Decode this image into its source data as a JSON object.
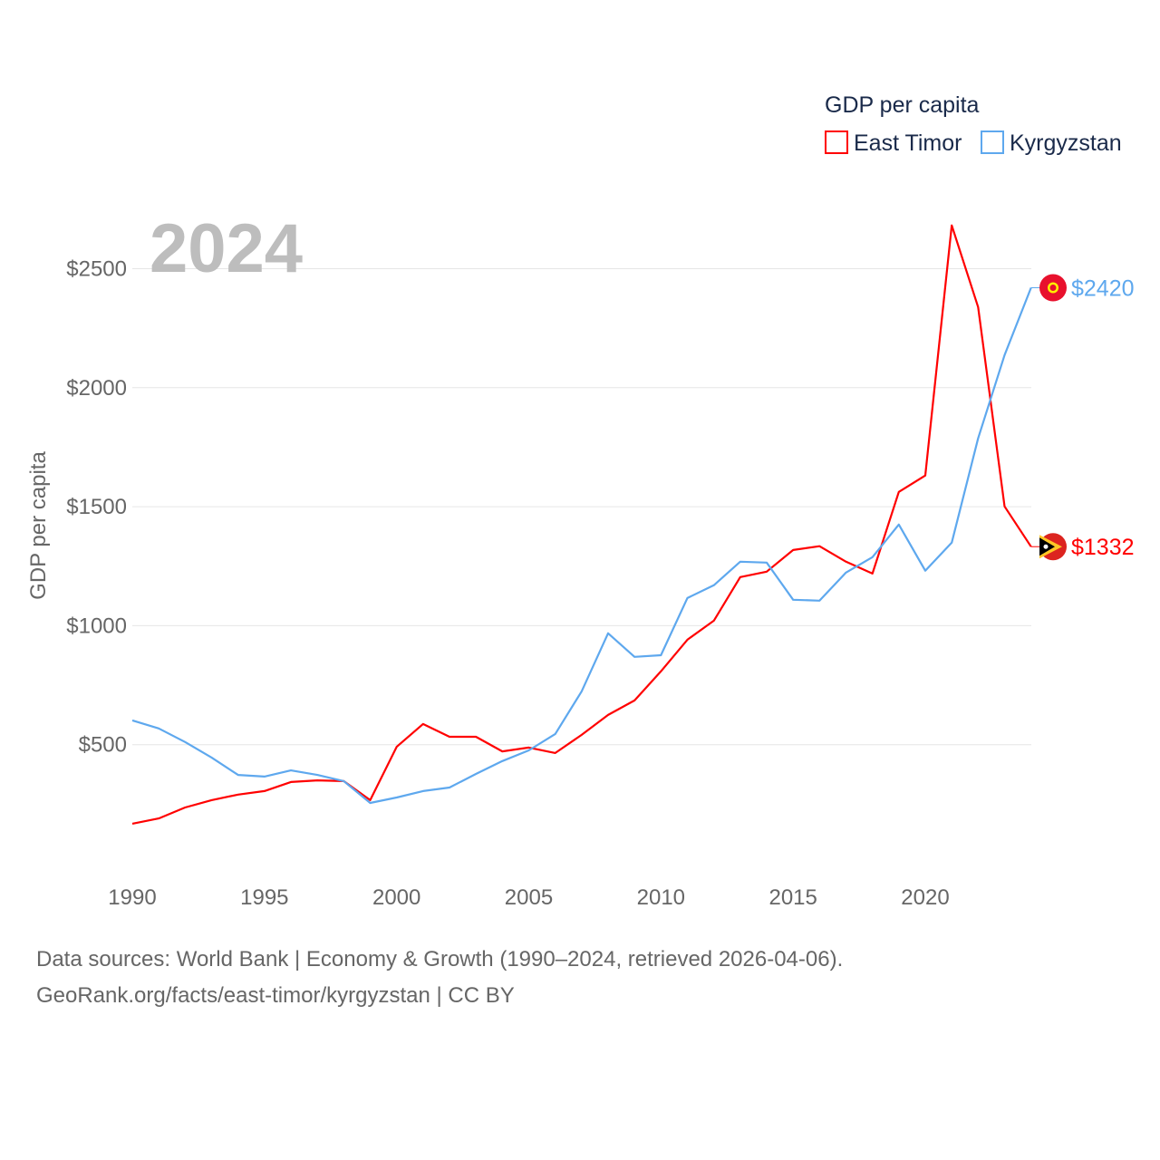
{
  "chart_data": {
    "type": "line",
    "title": "GDP per capita",
    "year_label": "2024",
    "ylabel": "GDP per capita",
    "xlabel": "",
    "xlim": [
      1990,
      2024
    ],
    "ylim": [
      0,
      2700
    ],
    "grid": true,
    "legend_position": "top-right",
    "x_ticks": [
      1990,
      1995,
      2000,
      2005,
      2010,
      2015,
      2020
    ],
    "y_ticks": [
      500,
      1000,
      1500,
      2000,
      2500
    ],
    "y_tick_labels": [
      "$500",
      "$1000",
      "$1500",
      "$2000",
      "$2500"
    ],
    "x": [
      1990,
      1991,
      1992,
      1993,
      1994,
      1995,
      1996,
      1997,
      1998,
      1999,
      2000,
      2001,
      2002,
      2003,
      2004,
      2005,
      2006,
      2007,
      2008,
      2009,
      2010,
      2011,
      2012,
      2013,
      2014,
      2015,
      2016,
      2017,
      2018,
      2019,
      2020,
      2021,
      2022,
      2023,
      2024
    ],
    "series": [
      {
        "name": "East Timor",
        "color": "#ff0000",
        "end_label": "$1332",
        "values": [
          168,
          190,
          236,
          267,
          290,
          305,
          343,
          350,
          347,
          267,
          491,
          587,
          533,
          533,
          472,
          488,
          465,
          541,
          625,
          686,
          808,
          941,
          1021,
          1204,
          1227,
          1318,
          1334,
          1269,
          1219,
          1562,
          1631,
          2682,
          2339,
          1501,
          1332
        ]
      },
      {
        "name": "Kyrgyzstan",
        "color": "#5ea8ee",
        "end_label": "$2420",
        "values": [
          602,
          568,
          511,
          446,
          373,
          366,
          392,
          373,
          347,
          255,
          278,
          305,
          320,
          377,
          431,
          476,
          545,
          724,
          968,
          869,
          876,
          1116,
          1170,
          1269,
          1265,
          1109,
          1105,
          1223,
          1288,
          1425,
          1231,
          1349,
          1787,
          2137,
          2420
        ]
      }
    ]
  },
  "footer": {
    "line1": "Data sources: World Bank | Economy & Growth (1990–2024, retrieved 2026-04-06).",
    "line2": "GeoRank.org/facts/east-timor/kyrgyzstan | CC BY"
  }
}
